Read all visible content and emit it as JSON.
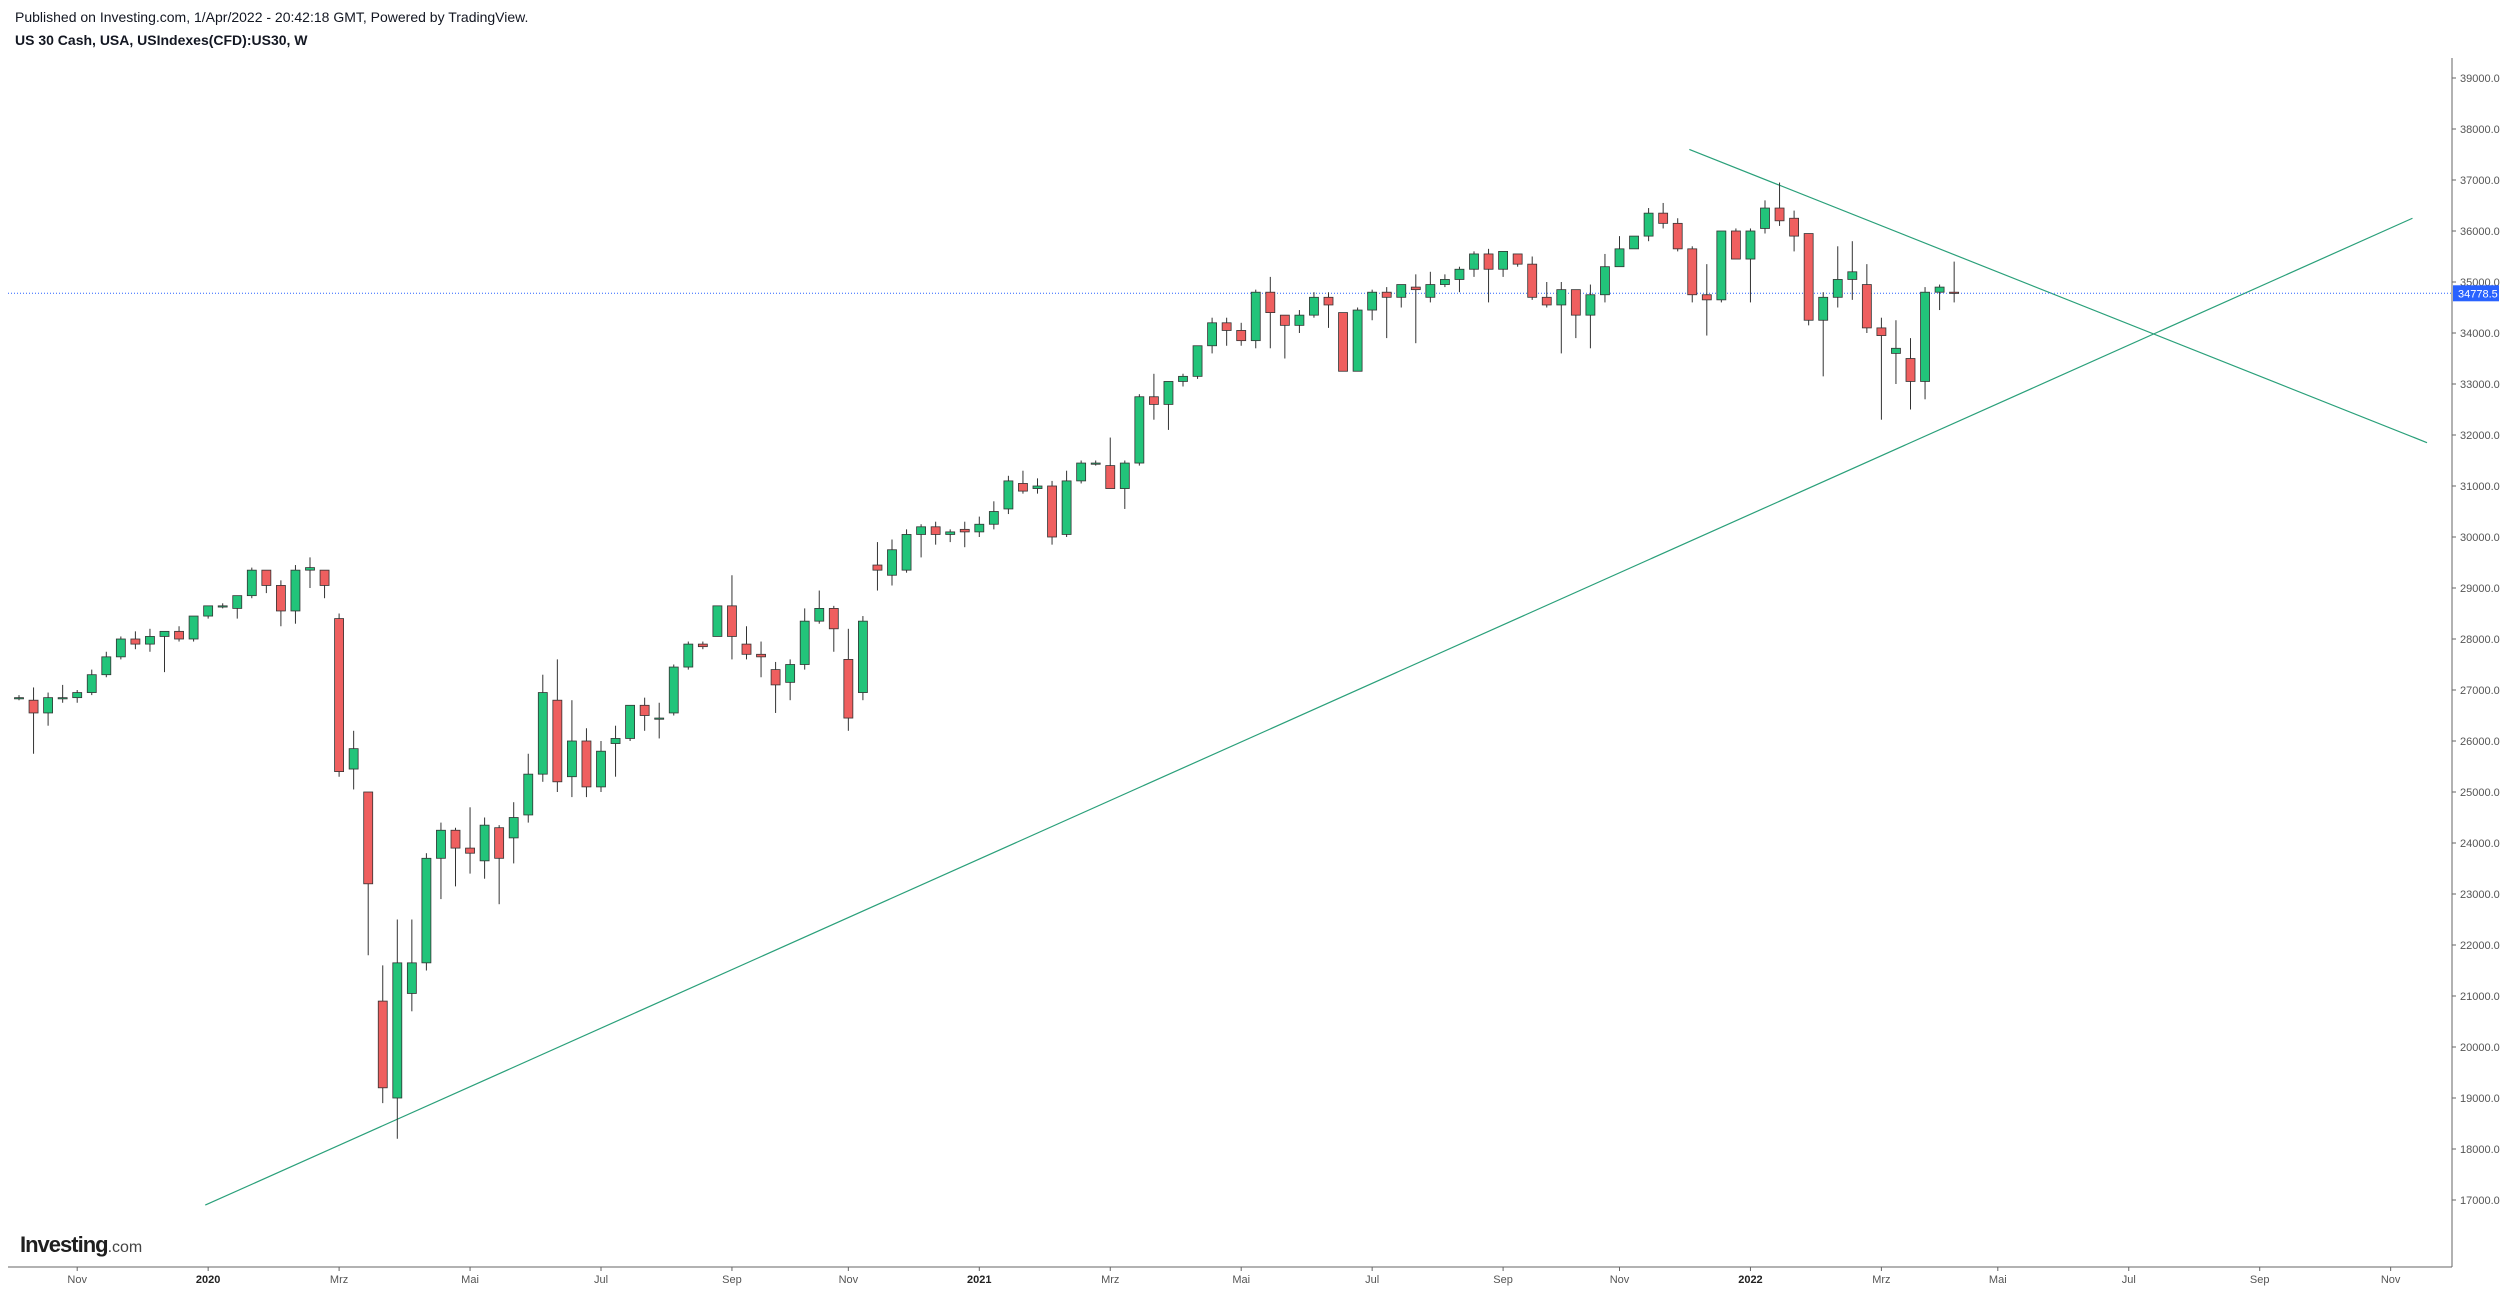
{
  "header": {
    "published": "Published on Investing.com, 1/Apr/2022 - 20:42:18 GMT, Powered by TradingView.",
    "symbol": "US 30 Cash, USA, USIndexes(CFD):US30, W"
  },
  "logo": {
    "brand": "Investing",
    "domain": ".com"
  },
  "colors": {
    "up": "#22c47a",
    "down": "#ef5f5f",
    "wick": "#333333",
    "trendline": "#2aa07a",
    "price_line": "#2962ff",
    "axis": "#666666"
  },
  "chart_data": {
    "type": "candlestick",
    "title": "",
    "interval": "W",
    "ylim": [
      16800,
      39500
    ],
    "y_ticks": [
      "17000.0",
      "18000.0",
      "19000.0",
      "20000.0",
      "21000.0",
      "22000.0",
      "23000.0",
      "24000.0",
      "25000.0",
      "26000.0",
      "27000.0",
      "28000.0",
      "29000.0",
      "30000.0",
      "31000.0",
      "32000.0",
      "33000.0",
      "34000.0",
      "35000.0",
      "36000.0",
      "37000.0",
      "38000.0",
      "39000.0"
    ],
    "x_ticks": [
      {
        "label": "Nov",
        "week": 4,
        "bold": false
      },
      {
        "label": "2020",
        "week": 13,
        "bold": true
      },
      {
        "label": "Mrz",
        "week": 22,
        "bold": false
      },
      {
        "label": "Mai",
        "week": 31,
        "bold": false
      },
      {
        "label": "Jul",
        "week": 40,
        "bold": false
      },
      {
        "label": "Sep",
        "week": 49,
        "bold": false
      },
      {
        "label": "Nov",
        "week": 57,
        "bold": false
      },
      {
        "label": "2021",
        "week": 66,
        "bold": true
      },
      {
        "label": "Mrz",
        "week": 75,
        "bold": false
      },
      {
        "label": "Mai",
        "week": 84,
        "bold": false
      },
      {
        "label": "Jul",
        "week": 93,
        "bold": false
      },
      {
        "label": "Sep",
        "week": 102,
        "bold": false
      },
      {
        "label": "Nov",
        "week": 110,
        "bold": false
      },
      {
        "label": "2022",
        "week": 119,
        "bold": true
      },
      {
        "label": "Mrz",
        "week": 128,
        "bold": false
      },
      {
        "label": "Mai",
        "week": 136,
        "bold": false
      },
      {
        "label": "Jul",
        "week": 145,
        "bold": false
      },
      {
        "label": "Sep",
        "week": 154,
        "bold": false
      },
      {
        "label": "Nov",
        "week": 163,
        "bold": false
      }
    ],
    "last_price": 34778.5,
    "last_price_label": "34778.5",
    "candles": [
      [
        26850,
        26900,
        26800,
        26850
      ],
      [
        26800,
        27050,
        25750,
        26550
      ],
      [
        26550,
        26950,
        26300,
        26850
      ],
      [
        26850,
        27100,
        26750,
        26850
      ],
      [
        26850,
        27000,
        26750,
        26950
      ],
      [
        26950,
        27400,
        26900,
        27300
      ],
      [
        27300,
        27750,
        27250,
        27650
      ],
      [
        27650,
        28050,
        27600,
        28000
      ],
      [
        28000,
        28150,
        27800,
        27900
      ],
      [
        27900,
        28200,
        27750,
        28050
      ],
      [
        28050,
        28100,
        27350,
        28150
      ],
      [
        28150,
        28250,
        27950,
        28000
      ],
      [
        28000,
        28450,
        27950,
        28450
      ],
      [
        28450,
        28650,
        28400,
        28650
      ],
      [
        28650,
        28700,
        28600,
        28650
      ],
      [
        28600,
        28850,
        28400,
        28850
      ],
      [
        28850,
        29400,
        28800,
        29350
      ],
      [
        29350,
        29350,
        28900,
        29050
      ],
      [
        29050,
        29150,
        28250,
        28550
      ],
      [
        28550,
        29450,
        28300,
        29350
      ],
      [
        29350,
        29600,
        29000,
        29400
      ],
      [
        29350,
        29300,
        28800,
        29050
      ],
      [
        28400,
        28500,
        25300,
        25400
      ],
      [
        25450,
        26200,
        25050,
        25850
      ],
      [
        25000,
        25000,
        21800,
        23200
      ],
      [
        20900,
        21600,
        18900,
        19200
      ],
      [
        19000,
        22500,
        18200,
        21650
      ],
      [
        21050,
        22500,
        20700,
        21650
      ],
      [
        21650,
        23800,
        21500,
        23700
      ],
      [
        23700,
        24400,
        22900,
        24250
      ],
      [
        24250,
        24300,
        23150,
        23900
      ],
      [
        23900,
        24700,
        23400,
        23800
      ],
      [
        23650,
        24500,
        23300,
        24350
      ],
      [
        24300,
        24350,
        22800,
        23700
      ],
      [
        24100,
        24800,
        23600,
        24500
      ],
      [
        24550,
        25750,
        24400,
        25350
      ],
      [
        25350,
        27300,
        25200,
        26950
      ],
      [
        26800,
        27600,
        25000,
        25200
      ],
      [
        25300,
        26800,
        24900,
        26000
      ],
      [
        26000,
        26250,
        24900,
        25100
      ],
      [
        25100,
        26000,
        25000,
        25800
      ],
      [
        25950,
        26300,
        25300,
        26050
      ],
      [
        26050,
        26700,
        26000,
        26700
      ],
      [
        26700,
        26850,
        26200,
        26500
      ],
      [
        26450,
        26750,
        26050,
        26450
      ],
      [
        26550,
        27500,
        26500,
        27450
      ],
      [
        27450,
        27950,
        27400,
        27900
      ],
      [
        27900,
        27950,
        27800,
        27850
      ],
      [
        28050,
        28650,
        28050,
        28650
      ],
      [
        28650,
        29250,
        27600,
        28050
      ],
      [
        27900,
        28250,
        27600,
        27700
      ],
      [
        27700,
        27950,
        27250,
        27650
      ],
      [
        27400,
        27550,
        26550,
        27100
      ],
      [
        27150,
        27600,
        26800,
        27500
      ],
      [
        27500,
        28600,
        27400,
        28350
      ],
      [
        28350,
        28950,
        28300,
        28600
      ],
      [
        28600,
        28650,
        27750,
        28200
      ],
      [
        27600,
        28200,
        26200,
        26450
      ],
      [
        26950,
        28450,
        26800,
        28350
      ],
      [
        29450,
        29900,
        28950,
        29350
      ],
      [
        29250,
        29950,
        29050,
        29750
      ],
      [
        29350,
        30150,
        29300,
        30050
      ],
      [
        30050,
        30250,
        29600,
        30200
      ],
      [
        30200,
        30300,
        29850,
        30050
      ],
      [
        30050,
        30150,
        29900,
        30100
      ],
      [
        30150,
        30300,
        29800,
        30100
      ],
      [
        30100,
        30400,
        30000,
        30250
      ],
      [
        30250,
        30700,
        30150,
        30500
      ],
      [
        30550,
        31200,
        30450,
        31100
      ],
      [
        31050,
        31300,
        30850,
        30900
      ],
      [
        30950,
        31150,
        30850,
        31000
      ],
      [
        31000,
        31100,
        29850,
        30000
      ],
      [
        30050,
        31300,
        30000,
        31100
      ],
      [
        31100,
        31500,
        31050,
        31450
      ],
      [
        31450,
        31500,
        31400,
        31450
      ],
      [
        31400,
        31950,
        30950,
        30950
      ],
      [
        30950,
        31500,
        30550,
        31450
      ],
      [
        31450,
        32800,
        31400,
        32750
      ],
      [
        32750,
        33200,
        32300,
        32600
      ],
      [
        32600,
        33050,
        32100,
        33050
      ],
      [
        33050,
        33200,
        32950,
        33150
      ],
      [
        33150,
        33750,
        33100,
        33750
      ],
      [
        33750,
        34300,
        33600,
        34200
      ],
      [
        34200,
        34300,
        33750,
        34050
      ],
      [
        34050,
        34200,
        33750,
        33850
      ],
      [
        33850,
        34850,
        33700,
        34800
      ],
      [
        34800,
        35100,
        33700,
        34400
      ],
      [
        34350,
        34350,
        33500,
        34150
      ],
      [
        34150,
        34450,
        34000,
        34350
      ],
      [
        34350,
        34800,
        34300,
        34700
      ],
      [
        34700,
        34800,
        34100,
        34550
      ],
      [
        34400,
        34400,
        33250,
        33250
      ],
      [
        33250,
        34500,
        33250,
        34450
      ],
      [
        34450,
        34850,
        34250,
        34800
      ],
      [
        34800,
        34900,
        33900,
        34700
      ],
      [
        34700,
        34900,
        34500,
        34950
      ],
      [
        34900,
        35150,
        33800,
        34850
      ],
      [
        34700,
        35200,
        34600,
        34950
      ],
      [
        34950,
        35150,
        34900,
        35050
      ],
      [
        35050,
        35300,
        34800,
        35250
      ],
      [
        35250,
        35600,
        35100,
        35550
      ],
      [
        35550,
        35650,
        34600,
        35250
      ],
      [
        35250,
        35600,
        35100,
        35600
      ],
      [
        35550,
        35500,
        35300,
        35350
      ],
      [
        35350,
        35500,
        34650,
        34700
      ],
      [
        34700,
        35000,
        34500,
        34550
      ],
      [
        34550,
        35000,
        33600,
        34850
      ],
      [
        34850,
        34850,
        33900,
        34350
      ],
      [
        34350,
        34950,
        33700,
        34750
      ],
      [
        34750,
        35550,
        34600,
        35300
      ],
      [
        35300,
        35900,
        35300,
        35650
      ],
      [
        35650,
        35900,
        35650,
        35900
      ],
      [
        35900,
        36450,
        35800,
        36350
      ],
      [
        36350,
        36550,
        36050,
        36150
      ],
      [
        36150,
        36250,
        35600,
        35650
      ],
      [
        35650,
        35700,
        34600,
        34750
      ],
      [
        34750,
        35350,
        33950,
        34650
      ],
      [
        34650,
        36000,
        34600,
        36000
      ],
      [
        36000,
        36050,
        35500,
        35450
      ],
      [
        35450,
        36050,
        34600,
        36000
      ],
      [
        36050,
        36600,
        35950,
        36450
      ],
      [
        36450,
        36950,
        36100,
        36200
      ],
      [
        36250,
        36400,
        35600,
        35900
      ],
      [
        35950,
        35950,
        34150,
        34250
      ],
      [
        34250,
        34800,
        33150,
        34700
      ],
      [
        34700,
        35700,
        34500,
        35050
      ],
      [
        35050,
        35800,
        34650,
        35200
      ],
      [
        34950,
        35350,
        34000,
        34100
      ],
      [
        34100,
        34300,
        32300,
        33950
      ],
      [
        33600,
        34250,
        33000,
        33700
      ],
      [
        33500,
        33900,
        32500,
        33050
      ],
      [
        33050,
        34900,
        32700,
        34800
      ],
      [
        34800,
        34950,
        34450,
        34900
      ],
      [
        34800,
        35400,
        34600,
        34778
      ]
    ],
    "trendlines": [
      {
        "from": [
          12.8,
          16900
        ],
        "to": [
          164.5,
          36250
        ]
      },
      {
        "from": [
          114.8,
          37600
        ],
        "to": [
          165.5,
          31850
        ]
      }
    ]
  }
}
